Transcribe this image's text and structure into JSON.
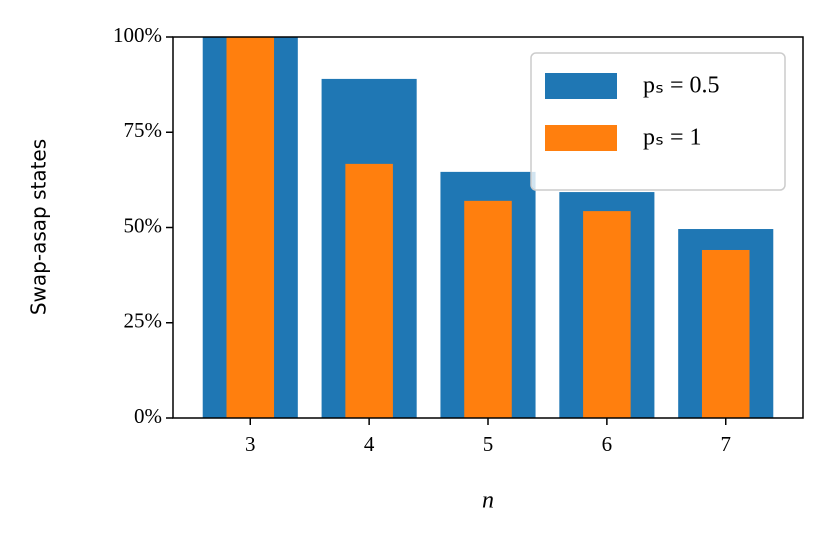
{
  "chart_data": {
    "type": "bar",
    "ylabel": "Swap-asap states",
    "xlabel": "n",
    "categories": [
      "3",
      "4",
      "5",
      "6",
      "7"
    ],
    "series": [
      {
        "name": "pₛ = 0.5",
        "color": "#1f77b4",
        "values": [
          100,
          89,
          64.6,
          59.3,
          49.6
        ]
      },
      {
        "name": "pₛ = 1",
        "color": "#ff7f0e",
        "values": [
          100,
          66.7,
          57,
          54.3,
          44.1
        ]
      }
    ],
    "ylim": [
      0,
      100
    ],
    "yticks": [
      {
        "value": 0,
        "label": "0%"
      },
      {
        "value": 25,
        "label": "25%"
      },
      {
        "value": 50,
        "label": "50%"
      },
      {
        "value": 75,
        "label": "75%"
      },
      {
        "value": 100,
        "label": "100%"
      }
    ],
    "legend": "upper right"
  }
}
